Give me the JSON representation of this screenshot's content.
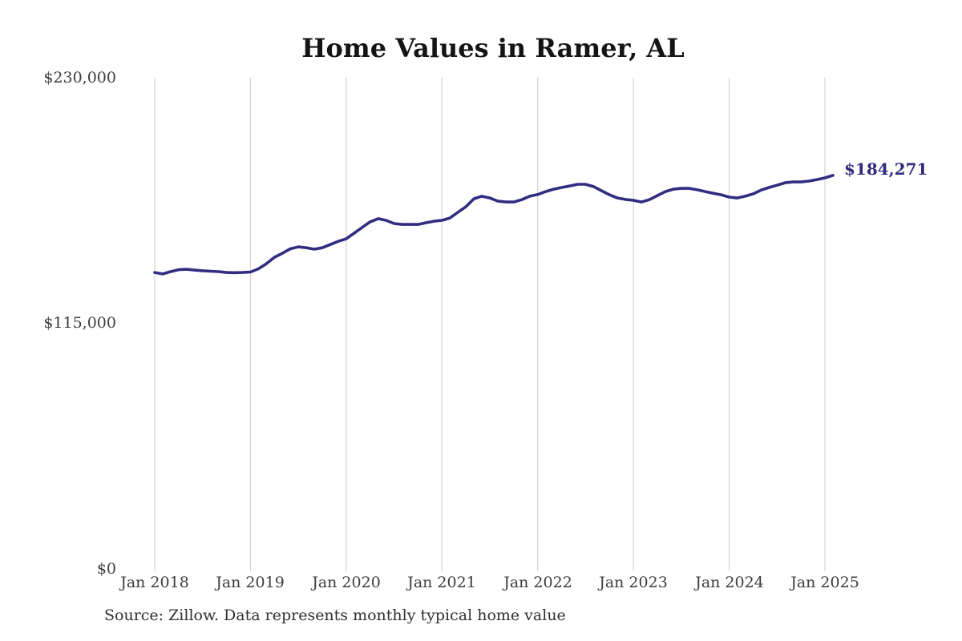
{
  "title": "Home Values in Ramer, AL",
  "y_axis": {
    "ticks": [
      "$0",
      "$115,000",
      "$230,000"
    ]
  },
  "x_axis": {
    "ticks": [
      "Jan 2018",
      "Jan 2019",
      "Jan 2020",
      "Jan 2021",
      "Jan 2022",
      "Jan 2023",
      "Jan 2024",
      "Jan 2025"
    ]
  },
  "annotation": {
    "label": "$184,271"
  },
  "source": "Source: Zillow. Data represents monthly typical home value",
  "colors": {
    "line": "#312e81",
    "annotation": "#2e2b7d",
    "grid": "#cccccc",
    "title_text": "#141414",
    "axis_text": "#3d3d3d",
    "source_text": "#303030",
    "background": "#ffffff"
  },
  "chart_data": {
    "type": "line",
    "title": "Home Values in Ramer, AL",
    "xlabel": "",
    "ylabel": "",
    "unit": "USD",
    "frequency": "monthly",
    "ylim": [
      0,
      230000
    ],
    "y_tick_values": [
      0,
      115000,
      230000
    ],
    "x_tick_labels": [
      "Jan 2018",
      "Jan 2019",
      "Jan 2020",
      "Jan 2021",
      "Jan 2022",
      "Jan 2023",
      "Jan 2024",
      "Jan 2025"
    ],
    "grid": "vertical-only",
    "legend": "none",
    "series_name": "Typical home value",
    "x": [
      "2018-01",
      "2018-02",
      "2018-03",
      "2018-04",
      "2018-05",
      "2018-06",
      "2018-07",
      "2018-08",
      "2018-09",
      "2018-10",
      "2018-11",
      "2018-12",
      "2019-01",
      "2019-02",
      "2019-03",
      "2019-04",
      "2019-05",
      "2019-06",
      "2019-07",
      "2019-08",
      "2019-09",
      "2019-10",
      "2019-11",
      "2019-12",
      "2020-01",
      "2020-02",
      "2020-03",
      "2020-04",
      "2020-05",
      "2020-06",
      "2020-07",
      "2020-08",
      "2020-09",
      "2020-10",
      "2020-11",
      "2020-12",
      "2021-01",
      "2021-02",
      "2021-03",
      "2021-04",
      "2021-05",
      "2021-06",
      "2021-07",
      "2021-08",
      "2021-09",
      "2021-10",
      "2021-11",
      "2021-12",
      "2022-01",
      "2022-02",
      "2022-03",
      "2022-04",
      "2022-05",
      "2022-06",
      "2022-07",
      "2022-08",
      "2022-09",
      "2022-10",
      "2022-11",
      "2022-12",
      "2023-01",
      "2023-02",
      "2023-03",
      "2023-04",
      "2023-05",
      "2023-06",
      "2023-07",
      "2023-08",
      "2023-09",
      "2023-10",
      "2023-11",
      "2023-12",
      "2024-01",
      "2024-02",
      "2024-03",
      "2024-04",
      "2024-05",
      "2024-06",
      "2024-07",
      "2024-08",
      "2024-09",
      "2024-10",
      "2024-11",
      "2024-12",
      "2025-01",
      "2025-02"
    ],
    "values": [
      138800,
      138100,
      139200,
      140100,
      140300,
      139900,
      139600,
      139400,
      139200,
      138800,
      138700,
      138800,
      139000,
      140500,
      142900,
      145900,
      147800,
      149900,
      150800,
      150400,
      149700,
      150400,
      151900,
      153400,
      154600,
      157200,
      159900,
      162500,
      164000,
      163200,
      161700,
      161300,
      161300,
      161300,
      162100,
      162800,
      163200,
      164300,
      167000,
      169600,
      173300,
      174500,
      173700,
      172200,
      171800,
      171800,
      172900,
      174500,
      175300,
      176700,
      177800,
      178600,
      179300,
      180100,
      180100,
      179000,
      177100,
      175200,
      173700,
      173000,
      172600,
      171800,
      172900,
      174800,
      176700,
      177800,
      178200,
      178200,
      177500,
      176700,
      175900,
      175200,
      174100,
      173700,
      174500,
      175600,
      177400,
      178600,
      179700,
      180800,
      181200,
      181200,
      181600,
      182300,
      183100,
      184271
    ],
    "final_point": {
      "x": "2025-02",
      "value": 184271,
      "label": "$184,271"
    }
  }
}
